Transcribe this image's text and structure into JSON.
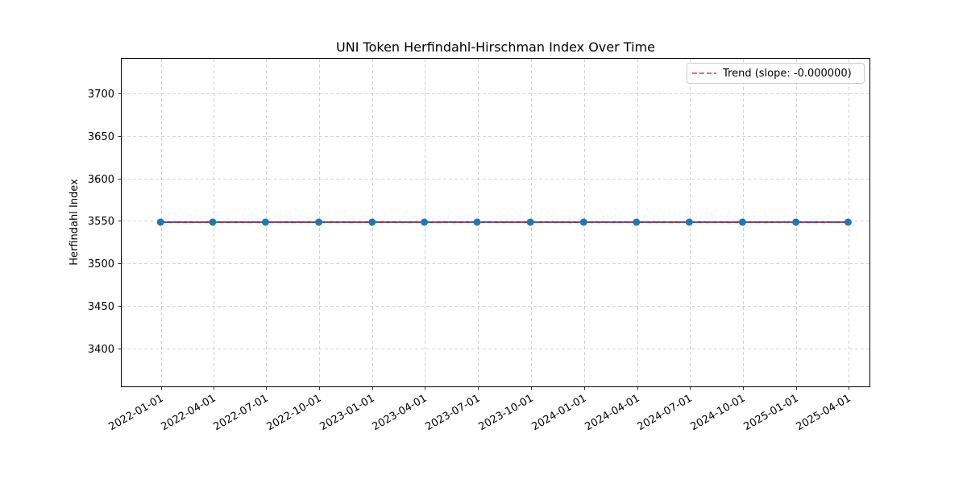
{
  "chart_data": {
    "type": "line",
    "title": "UNI Token Herfindahl-Hirschman Index Over Time",
    "xlabel": "",
    "ylabel": "Herfindahl Index",
    "x": [
      "2021-12-31",
      "2022-03-31",
      "2022-06-30",
      "2022-09-30",
      "2022-12-31",
      "2023-03-31",
      "2023-06-30",
      "2023-09-30",
      "2023-12-31",
      "2024-03-31",
      "2024-06-30",
      "2024-09-30",
      "2024-12-31",
      "2025-03-31"
    ],
    "x_ticks": [
      "2022-01-01",
      "2022-04-01",
      "2022-07-01",
      "2022-10-01",
      "2023-01-01",
      "2023-04-01",
      "2023-07-01",
      "2023-10-01",
      "2024-01-01",
      "2024-04-01",
      "2024-07-01",
      "2024-10-01",
      "2025-01-01",
      "2025-04-01"
    ],
    "xlim": [
      "2021-10-25",
      "2025-05-07"
    ],
    "ylim": [
      3355,
      3741
    ],
    "y_ticks": [
      3400,
      3450,
      3500,
      3550,
      3600,
      3650,
      3700
    ],
    "grid": true,
    "legend_position": "top-right",
    "series": [
      {
        "values": [
          3548.5,
          3548.5,
          3548.5,
          3548.5,
          3548.5,
          3548.5,
          3548.5,
          3548.5,
          3548.5,
          3548.5,
          3548.5,
          3548.5,
          3548.5,
          3548.5
        ],
        "color": "#1f77b4",
        "style": "solid",
        "marker": "circle"
      },
      {
        "name": "Trend (slope: -0.000000)",
        "values": [
          3548.5,
          3548.5,
          3548.5,
          3548.5,
          3548.5,
          3548.5,
          3548.5,
          3548.5,
          3548.5,
          3548.5,
          3548.5,
          3548.5,
          3548.5,
          3548.5
        ],
        "color": "#ff0000",
        "style": "dashed"
      }
    ]
  }
}
